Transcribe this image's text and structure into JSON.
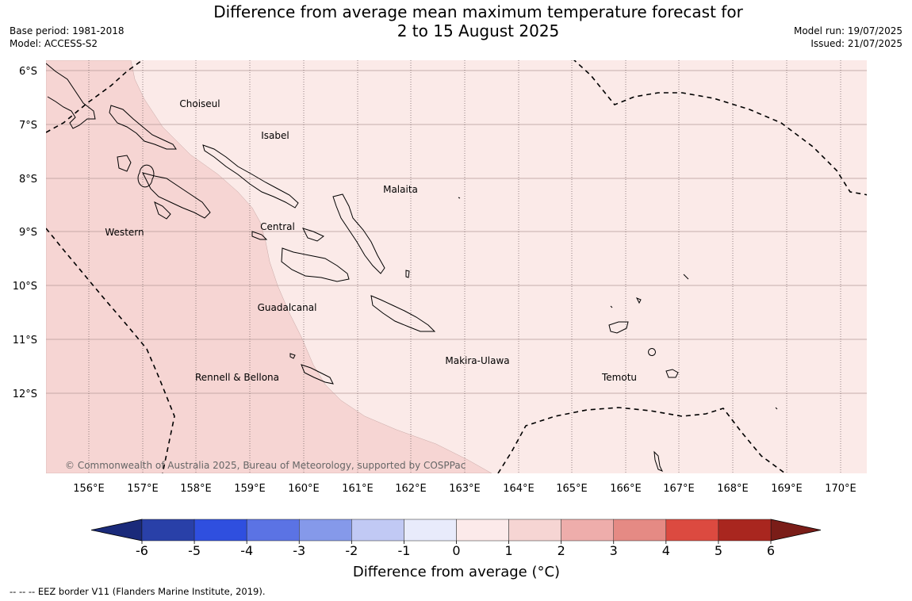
{
  "header": {
    "title_line1": "Difference from average mean maximum temperature forecast for",
    "title_line2": "2 to 15 August 2025",
    "base_period": "Base period: 1981-2018",
    "model": "Model: ACCESS-S2",
    "model_run": "Model run: 19/07/2025",
    "issued": "Issued: 21/07/2025"
  },
  "map": {
    "lat_labels": [
      "6°S",
      "7°S",
      "8°S",
      "9°S",
      "10°S",
      "11°S",
      "12°S"
    ],
    "lon_labels": [
      "156°E",
      "157°E",
      "158°E",
      "159°E",
      "160°E",
      "161°E",
      "162°E",
      "163°E",
      "164°E",
      "165°E",
      "166°E",
      "167°E",
      "168°E",
      "169°E",
      "170°E"
    ],
    "province_labels": [
      "Choiseul",
      "Isabel",
      "Malaita",
      "Western",
      "Central",
      "Guadalcanal",
      "Makira-Ulawa",
      "Rennell & Bellona",
      "Temotu"
    ],
    "copyright": "© Commonwealth of Australia 2025, Bureau of Meteorology, supported by COSPPac",
    "anomaly_regions": [
      {
        "range": "1 to 2",
        "color": "#f6d5d3"
      },
      {
        "range": "0 to 1",
        "color": "#fbeae8"
      }
    ]
  },
  "colorbar": {
    "title": "Difference from average (°C)",
    "ticks": [
      "-6",
      "-5",
      "-4",
      "-3",
      "-2",
      "-1",
      "0",
      "1",
      "2",
      "3",
      "4",
      "5",
      "6"
    ],
    "colors": [
      "#2940a8",
      "#2f4fdf",
      "#5b73e4",
      "#8599ea",
      "#c1c9f4",
      "#e8ebfb",
      "#fceaea",
      "#f6d5d3",
      "#eeadab",
      "#e58a84",
      "#dc4a40",
      "#a9261f"
    ],
    "under_color": "#1a2a7a",
    "over_color": "#7a1d18"
  },
  "footnote": "--  --  -- EEZ border V11 (Flanders Marine Institute, 2019)."
}
